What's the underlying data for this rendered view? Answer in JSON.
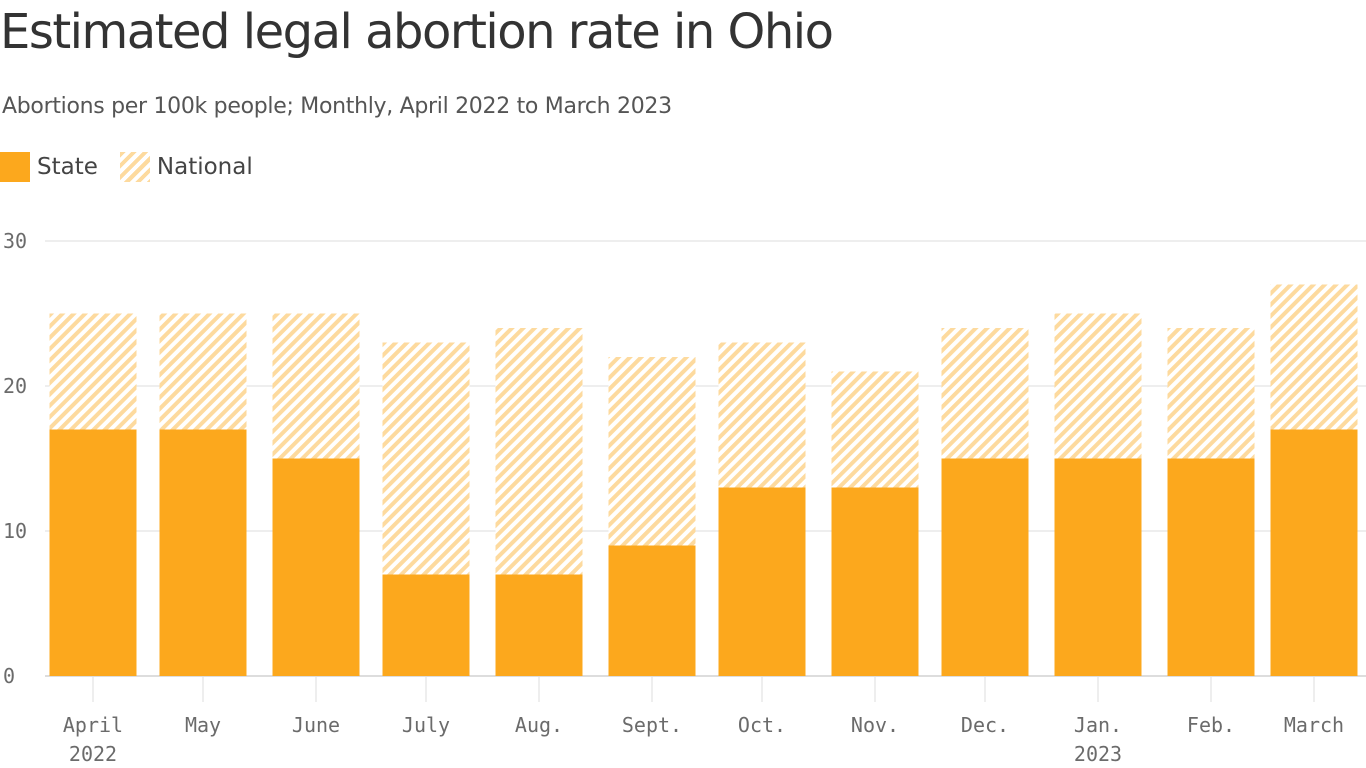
{
  "chart_data": {
    "type": "bar",
    "title": "Estimated legal abortion rate in Ohio",
    "subtitle": "Abortions per 100k people; Monthly, April 2022 to March 2023",
    "legend": [
      "State",
      "National"
    ],
    "categories": [
      [
        "April",
        "2022"
      ],
      [
        "May",
        ""
      ],
      [
        "June",
        ""
      ],
      [
        "July",
        ""
      ],
      [
        "Aug.",
        ""
      ],
      [
        "Sept.",
        ""
      ],
      [
        "Oct.",
        ""
      ],
      [
        "Nov.",
        ""
      ],
      [
        "Dec.",
        ""
      ],
      [
        "Jan.",
        "2023"
      ],
      [
        "Feb.",
        ""
      ],
      [
        "March",
        ""
      ]
    ],
    "series": [
      {
        "name": "State",
        "values": [
          17,
          17,
          15,
          7,
          7,
          9,
          13,
          13,
          15,
          15,
          15,
          17
        ]
      },
      {
        "name": "National",
        "values": [
          25,
          25,
          25,
          23,
          24,
          22,
          23,
          21,
          24,
          25,
          24,
          27
        ]
      }
    ],
    "ylim": [
      0,
      30
    ],
    "yticks": [
      0,
      10,
      20,
      30
    ],
    "grid": true,
    "legend_position": "top-left",
    "colors": {
      "state": "#FCA81D",
      "national": "#FDDA9E",
      "grid": "#dddddd",
      "axis": "#bbbbbb"
    }
  }
}
